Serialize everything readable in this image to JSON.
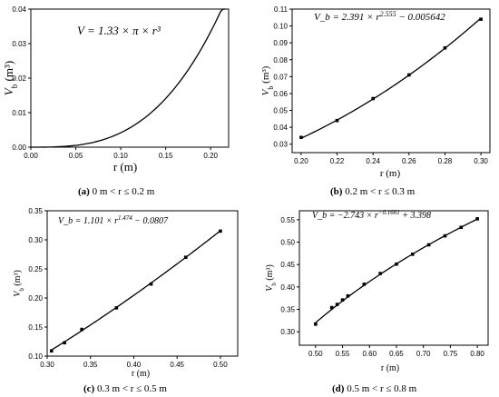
{
  "chart_data": [
    {
      "type": "line",
      "panel": "a",
      "equation": "V_b = 1.33 × π × r³",
      "xlabel": "r (m)",
      "ylabel": "V_b (m³)",
      "xlim": [
        0,
        0.22
      ],
      "ylim": [
        0,
        0.04
      ],
      "xticks": [
        "0.00",
        "0.05",
        "0.10",
        "0.15",
        "0.20"
      ],
      "yticks": [
        "0.00",
        "0.01",
        "0.02",
        "0.03",
        "0.04"
      ],
      "curve": {
        "formula": "1.33*pi*r^3",
        "x_range": [
          0,
          0.2165
        ]
      },
      "caption": {
        "letter": "(a)",
        "text": "0 m < r ≤ 0.2 m"
      }
    },
    {
      "type": "scatter",
      "panel": "b",
      "equation": "V_b = 2.391 × r^2.555 − 0.005642",
      "xlabel": "r (m)",
      "ylabel": "V_b (m³)",
      "xlim": [
        0.195,
        0.305
      ],
      "ylim": [
        0.025,
        0.11
      ],
      "xticks": [
        "0.20",
        "0.22",
        "0.24",
        "0.26",
        "0.28",
        "0.30"
      ],
      "yticks": [
        "0.03",
        "0.04",
        "0.05",
        "0.06",
        "0.07",
        "0.08",
        "0.09",
        "0.10",
        "0.11"
      ],
      "x": [
        0.2,
        0.22,
        0.24,
        0.26,
        0.28,
        0.3
      ],
      "y": [
        0.034,
        0.044,
        0.057,
        0.071,
        0.087,
        0.104
      ],
      "curve": {
        "formula": "2.391*r^2.555-0.005642",
        "x_range": [
          0.2,
          0.3
        ]
      },
      "caption": {
        "letter": "(b)",
        "text": "0.2 m < r ≤ 0.3 m"
      }
    },
    {
      "type": "scatter",
      "panel": "c",
      "equation": "V_b = 1.101 × r^1.474 − 0.0807",
      "xlabel": "r (m)",
      "ylabel": "V_b (m³)",
      "xlim": [
        0.3,
        0.52
      ],
      "ylim": [
        0.1,
        0.35
      ],
      "xticks": [
        "0.30",
        "0.35",
        "0.40",
        "0.45",
        "0.50"
      ],
      "yticks": [
        "0.10",
        "0.15",
        "0.20",
        "0.25",
        "0.30",
        "0.35"
      ],
      "x": [
        0.305,
        0.32,
        0.34,
        0.38,
        0.42,
        0.46,
        0.5
      ],
      "y": [
        0.109,
        0.123,
        0.146,
        0.183,
        0.224,
        0.27,
        0.315
      ],
      "curve": {
        "formula": "1.101*r^1.474-0.0807",
        "x_range": [
          0.305,
          0.5
        ]
      },
      "caption": {
        "letter": "(c)",
        "text": "0.3 m < r ≤ 0.5 m"
      }
    },
    {
      "type": "scatter",
      "panel": "d",
      "equation": "V_b = −2.743 × r^−0.1661 + 3.398",
      "xlabel": "r (m)",
      "ylabel": "V_b (m³)",
      "xlim": [
        0.47,
        0.82
      ],
      "ylim": [
        0.27,
        0.57
      ],
      "xticks": [
        "0.50",
        "0.55",
        "0.60",
        "0.65",
        "0.70",
        "0.75",
        "0.80"
      ],
      "yticks": [
        "0.30",
        "0.35",
        "0.40",
        "0.45",
        "0.50",
        "0.55"
      ],
      "x": [
        0.5,
        0.53,
        0.54,
        0.55,
        0.56,
        0.59,
        0.62,
        0.65,
        0.68,
        0.71,
        0.74,
        0.77,
        0.8
      ],
      "y": [
        0.317,
        0.354,
        0.361,
        0.371,
        0.38,
        0.406,
        0.43,
        0.451,
        0.473,
        0.494,
        0.514,
        0.533,
        0.552
      ],
      "curve": {
        "formula": "-2.743*r^-0.1661+3.398",
        "x_range": [
          0.5,
          0.8
        ]
      },
      "caption": {
        "letter": "(d)",
        "text": "0.5 m < r ≤ 0.8 m"
      }
    }
  ]
}
